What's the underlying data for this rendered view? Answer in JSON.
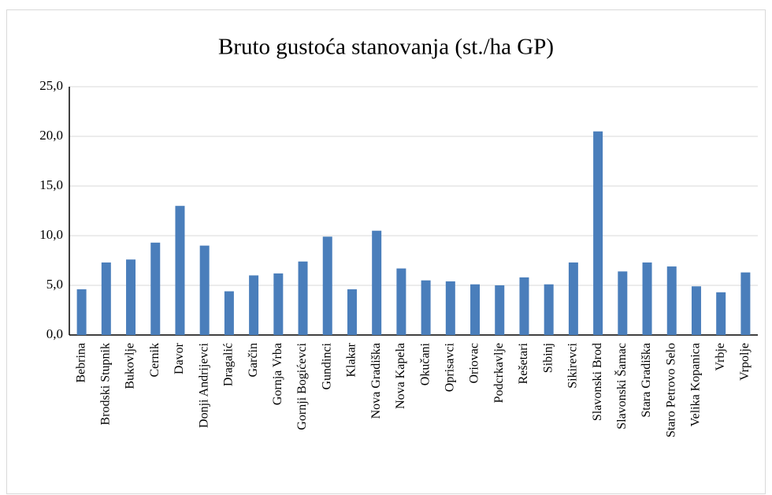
{
  "chart_data": {
    "type": "bar",
    "title": "Bruto gustoća stanovanja (st./ha GP)",
    "categories": [
      "Bebrina",
      "Brodski Stupnik",
      "Bukovlje",
      "Cernik",
      "Davor",
      "Donji Andrijevci",
      "Dragalić",
      "Garčin",
      "Gornja Vrba",
      "Gornji Bogićevci",
      "Gundinci",
      "Klakar",
      "Nova Gradiška",
      "Nova Kapela",
      "Okučani",
      "Oprisavci",
      "Oriovac",
      "Podcrkavlje",
      "Rešetari",
      "Sibinj",
      "Sikirevci",
      "Slavonski Brod",
      "Slavonski Šamac",
      "Stara Gradiška",
      "Staro Petrovo Selo",
      "Velika Kopanica",
      "Vrbje",
      "Vrpolje"
    ],
    "values": [
      4.6,
      7.3,
      7.6,
      9.3,
      13.0,
      9.0,
      4.4,
      6.0,
      6.2,
      7.4,
      9.9,
      4.6,
      10.5,
      6.7,
      5.5,
      5.4,
      5.1,
      5.0,
      5.8,
      5.1,
      7.3,
      20.5,
      6.4,
      7.3,
      6.9,
      4.9,
      4.3,
      6.3
    ],
    "color": "#4a7ebb",
    "ylim": [
      0,
      25
    ],
    "yticks": [
      {
        "value": 0,
        "label": "0,0"
      },
      {
        "value": 5,
        "label": "5,0"
      },
      {
        "value": 10,
        "label": "10,0"
      },
      {
        "value": 15,
        "label": "15,0"
      },
      {
        "value": 20,
        "label": "20,0"
      },
      {
        "value": 25,
        "label": "25,0"
      }
    ],
    "grid": true
  }
}
